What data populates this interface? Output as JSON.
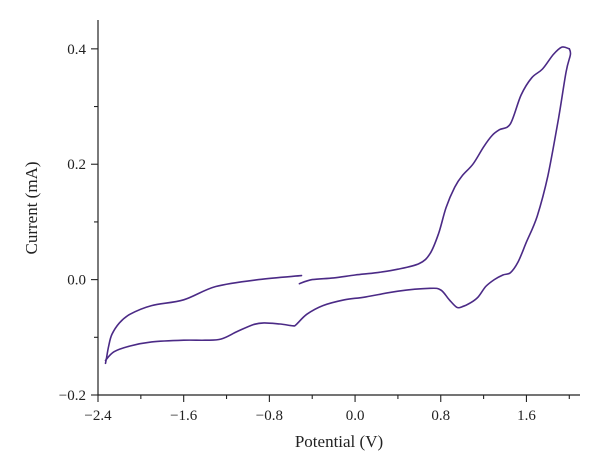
{
  "chart_data": {
    "type": "line",
    "title": "",
    "xlabel": "Potential (V)",
    "ylabel": "Current (mA)",
    "xlim": [
      -2.4,
      2.1
    ],
    "ylim": [
      -0.2,
      0.45
    ],
    "xticks": [
      -2.4,
      -1.6,
      -0.8,
      0.0,
      0.8,
      1.6
    ],
    "xtick_labels": [
      "−2.4",
      "−1.6",
      "−0.8",
      "0.0",
      "0.8",
      "1.6"
    ],
    "yticks": [
      -0.2,
      0.0,
      0.2,
      0.4
    ],
    "ytick_labels": [
      "−0.2",
      "0.0",
      "0.2",
      "0.4"
    ],
    "grid": false,
    "legend": "none",
    "line_color": "#4b2a86",
    "series": [
      {
        "x": [
          -0.5,
          -0.9,
          -1.3,
          -1.6,
          -1.9,
          -2.1,
          -2.2,
          -2.27,
          -2.3,
          -2.32,
          -2.33
        ],
        "y": [
          0.007,
          0.0,
          -0.012,
          -0.035,
          -0.045,
          -0.06,
          -0.075,
          -0.095,
          -0.115,
          -0.135,
          -0.145
        ]
      },
      {
        "x": [
          -2.33,
          -2.25,
          -2.1,
          -1.9,
          -1.6,
          -1.4,
          -1.25,
          -1.1,
          -0.95,
          -0.85,
          -0.7,
          -0.58,
          -0.55,
          -0.45,
          -0.3,
          -0.1,
          0.1,
          0.4,
          0.7,
          0.8,
          0.88,
          0.95,
          1.0,
          1.08,
          1.15,
          1.22,
          1.3,
          1.38,
          1.45,
          1.52,
          1.6,
          1.7,
          1.8,
          1.9,
          1.97,
          2.01,
          2.0
        ],
        "y": [
          -0.14,
          -0.125,
          -0.115,
          -0.108,
          -0.105,
          -0.105,
          -0.103,
          -0.09,
          -0.078,
          -0.075,
          -0.077,
          -0.08,
          -0.078,
          -0.06,
          -0.045,
          -0.035,
          -0.03,
          -0.02,
          -0.015,
          -0.018,
          -0.035,
          -0.048,
          -0.047,
          -0.04,
          -0.03,
          -0.012,
          0.0,
          0.008,
          0.012,
          0.03,
          0.065,
          0.11,
          0.18,
          0.28,
          0.36,
          0.39,
          0.4
        ]
      },
      {
        "x": [
          2.0,
          1.93,
          1.85,
          1.75,
          1.65,
          1.55,
          1.45,
          1.35,
          1.28,
          1.2,
          1.1,
          1.0,
          0.93,
          0.85,
          0.78,
          0.7,
          0.6,
          0.4,
          0.2,
          0.0,
          -0.2,
          -0.4,
          -0.52
        ],
        "y": [
          0.4,
          0.403,
          0.39,
          0.365,
          0.35,
          0.32,
          0.27,
          0.26,
          0.25,
          0.23,
          0.2,
          0.18,
          0.16,
          0.125,
          0.08,
          0.045,
          0.028,
          0.018,
          0.012,
          0.008,
          0.003,
          0.0,
          -0.007
        ]
      }
    ]
  }
}
